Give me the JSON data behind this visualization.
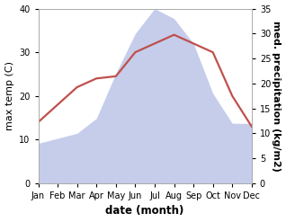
{
  "months": [
    "Jan",
    "Feb",
    "Mar",
    "Apr",
    "May",
    "Jun",
    "Jul",
    "Aug",
    "Sep",
    "Oct",
    "Nov",
    "Dec"
  ],
  "temp": [
    14,
    18,
    22,
    24,
    24.5,
    30,
    32,
    34,
    32,
    30,
    20,
    13
  ],
  "precip": [
    8,
    9,
    10,
    13,
    22,
    30,
    35,
    33,
    28,
    18,
    12,
    12
  ],
  "temp_color": "#c0504d",
  "precip_fill_color": "#bbc5e8",
  "left_ylim": [
    0,
    40
  ],
  "right_ylim": [
    0,
    35
  ],
  "left_yticks": [
    0,
    10,
    20,
    30,
    40
  ],
  "right_yticks": [
    0,
    5,
    10,
    15,
    20,
    25,
    30,
    35
  ],
  "xlabel": "date (month)",
  "ylabel_left": "max temp (C)",
  "ylabel_right": "med. precipitation (kg/m2)",
  "bg_color": "#ffffff",
  "xlabel_fontsize": 8.5,
  "ylabel_fontsize": 8,
  "tick_fontsize": 7
}
